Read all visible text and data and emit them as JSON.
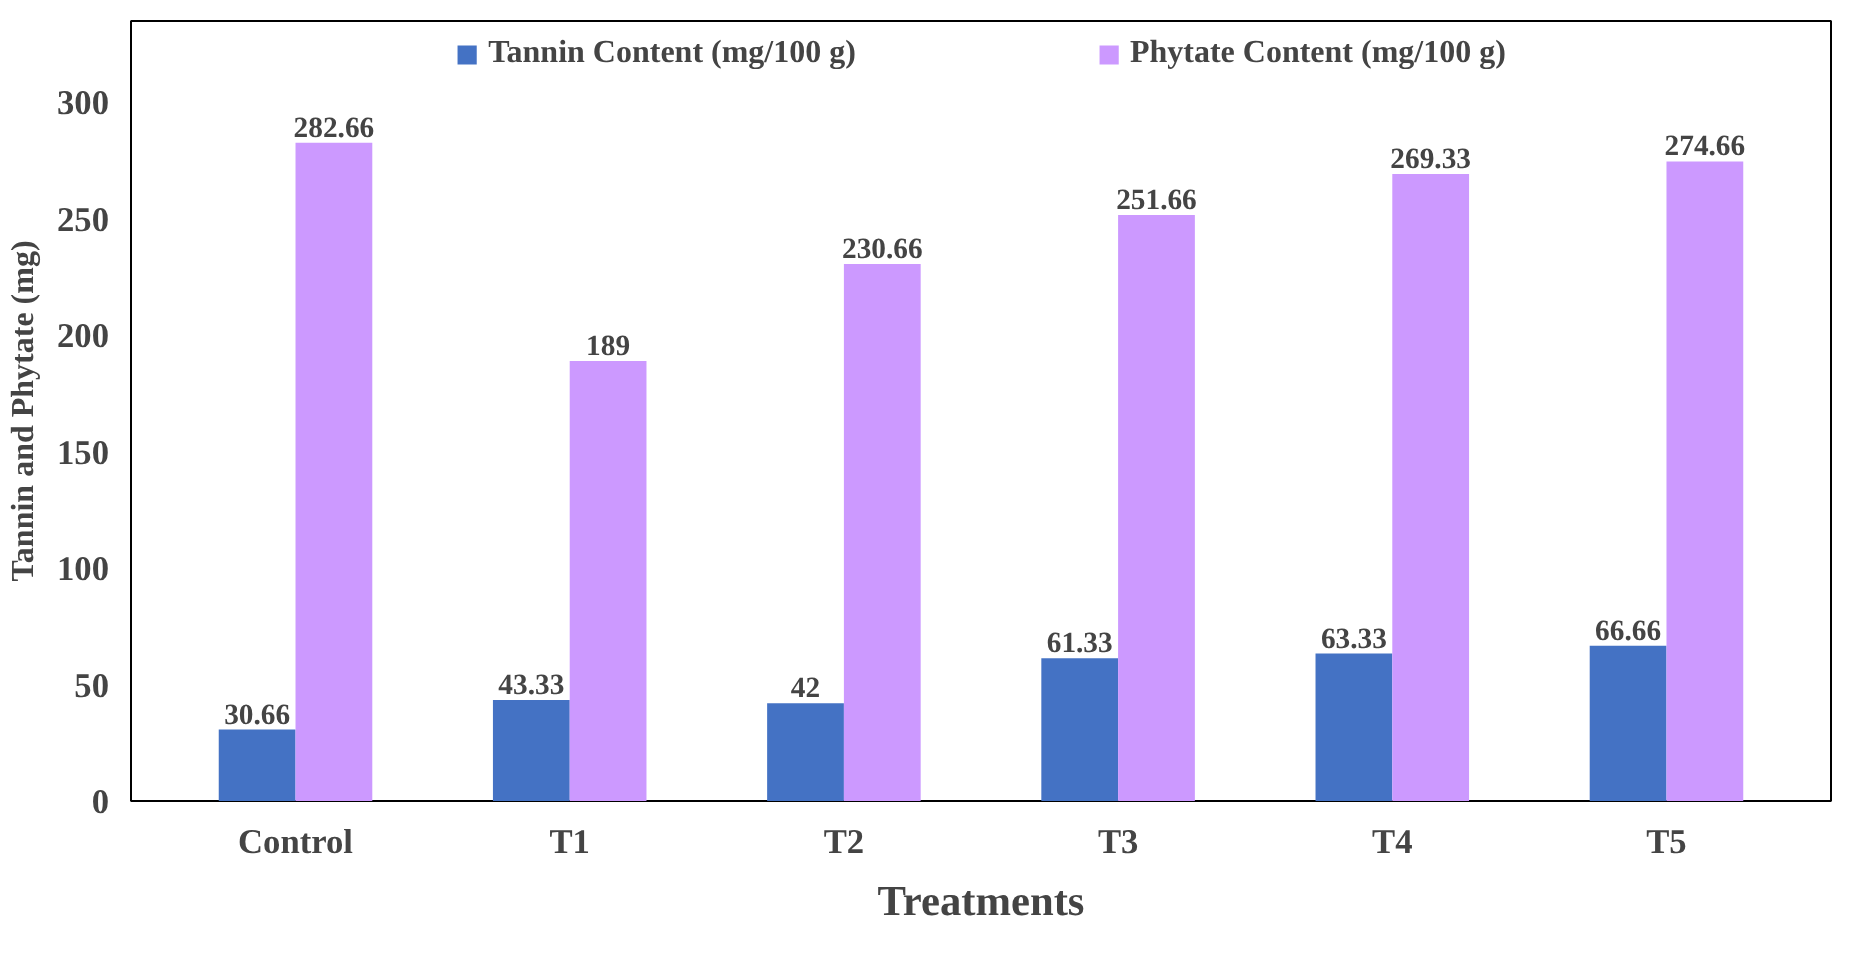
{
  "chart_data": {
    "type": "bar",
    "xlabel": "Treatments",
    "ylabel": "Tannin and Phytate (mg)",
    "categories": [
      "Control",
      "T1",
      "T2",
      "T3",
      "T4",
      "T5"
    ],
    "series": [
      {
        "name": "Tannin Content (mg/100 g)",
        "color": "#4472c4",
        "values": [
          30.66,
          43.33,
          42,
          61.33,
          63.33,
          66.66
        ]
      },
      {
        "name": "Phytate Content (mg/100 g)",
        "color": "#cc99ff",
        "values": [
          282.66,
          189,
          230.66,
          251.66,
          269.33,
          274.66
        ]
      }
    ],
    "ylim": [
      0,
      335
    ],
    "yticks": [
      0,
      50,
      100,
      150,
      200,
      250,
      300
    ],
    "grid": false,
    "legend": "top",
    "data_labels": true
  }
}
